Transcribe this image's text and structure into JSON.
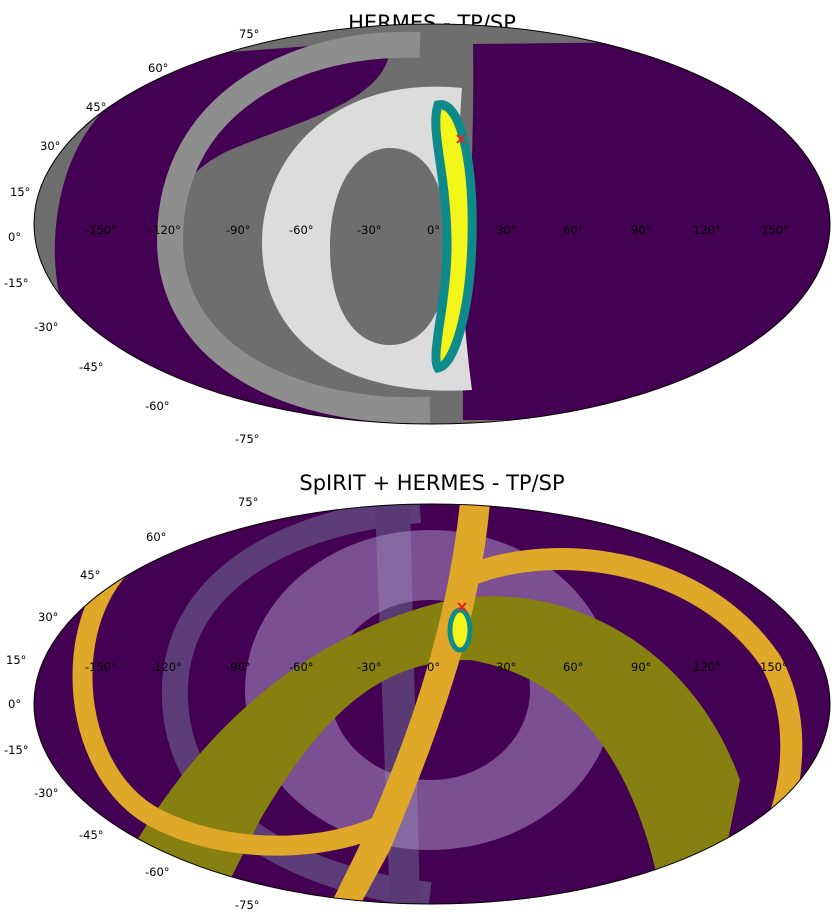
{
  "colors": {
    "background": "#ffffff",
    "purple": "#440154",
    "dark_gray": "#6e6e6e",
    "mid_gray": "#8e8e8e",
    "light_gray": "#dcdcdc",
    "teal": "#0e8a8a",
    "yellow": "#f4f51a",
    "gold": "#e0a828",
    "olive": "#858010",
    "lavender": "#a98fc2",
    "marker": "#e8231a"
  },
  "chart_data": [
    {
      "type": "heatmap",
      "projection": "mollweide",
      "title": "HERMES - TP/SP",
      "lon_ticks": [
        "-150°",
        "-120°",
        "-90°",
        "-60°",
        "-30°",
        "0°",
        "30°",
        "60°",
        "90°",
        "120°",
        "150°"
      ],
      "lat_ticks": [
        "75°",
        "60°",
        "45°",
        "30°",
        "15°",
        "0°",
        "-15°",
        "-30°",
        "-45°",
        "-60°",
        "-75°"
      ],
      "marker": {
        "symbol": "x",
        "lon": 10,
        "lat": 32
      },
      "regions": [
        {
          "kind": "annulus",
          "center_lon": -45,
          "center_lat": -3,
          "r_outer": 75,
          "r_inner": 48,
          "shade": "light_gray"
        },
        {
          "kind": "annulus",
          "center_lon": -90,
          "center_lat": 0,
          "r_outer": 90,
          "r_inner": 81,
          "shade": "mid_gray"
        },
        {
          "kind": "crescent",
          "center_lon": 8,
          "center_lat": 0,
          "lat_span": [
            -43,
            36
          ],
          "shade": "yellow",
          "edge": "teal"
        }
      ]
    },
    {
      "type": "heatmap",
      "projection": "mollweide",
      "title": "SpIRIT + HERMES - TP/SP",
      "lon_ticks": [
        "-150°",
        "-120°",
        "-90°",
        "-60°",
        "-30°",
        "0°",
        "30°",
        "60°",
        "90°",
        "120°",
        "150°"
      ],
      "lat_ticks": [
        "75°",
        "60°",
        "45°",
        "30°",
        "15°",
        "0°",
        "-15°",
        "-30°",
        "-45°",
        "-60°",
        "-75°"
      ],
      "marker": {
        "symbol": "x",
        "lon": 10,
        "lat": 32
      },
      "regions": [
        {
          "kind": "annulus",
          "center_lon": -45,
          "center_lat": -3,
          "r_outer": 75,
          "r_inner": 48,
          "shade": "lavender"
        },
        {
          "kind": "band",
          "shade": "gold"
        },
        {
          "kind": "band",
          "shade": "olive"
        },
        {
          "kind": "ellipse",
          "center_lon": 8,
          "center_lat": 22,
          "shade": "yellow",
          "edge": "teal"
        }
      ]
    }
  ]
}
